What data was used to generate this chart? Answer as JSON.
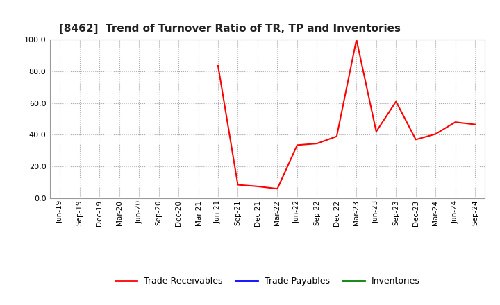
{
  "title": "[8462]  Trend of Turnover Ratio of TR, TP and Inventories",
  "ylim": [
    0.0,
    100.0
  ],
  "yticks": [
    0.0,
    20.0,
    40.0,
    60.0,
    80.0,
    100.0
  ],
  "background_color": "#ffffff",
  "plot_bg_color": "#ffffff",
  "grid_color": "#aaaaaa",
  "trade_receivables_color": "#ff0000",
  "trade_payables_color": "#0000ff",
  "inventories_color": "#008000",
  "x_labels": [
    "Jun-19",
    "Sep-19",
    "Dec-19",
    "Mar-20",
    "Jun-20",
    "Sep-20",
    "Dec-20",
    "Mar-21",
    "Jun-21",
    "Sep-21",
    "Dec-21",
    "Mar-22",
    "Jun-22",
    "Sep-22",
    "Dec-22",
    "Mar-23",
    "Jun-23",
    "Sep-23",
    "Dec-23",
    "Mar-24",
    "Jun-24",
    "Sep-24"
  ],
  "trade_receivables": [
    null,
    null,
    null,
    null,
    null,
    null,
    null,
    null,
    83.5,
    8.5,
    7.5,
    6.0,
    33.5,
    34.5,
    39.0,
    100.0,
    42.0,
    61.0,
    37.0,
    40.5,
    48.0,
    46.5
  ],
  "trade_payables": [
    null,
    null,
    null,
    null,
    null,
    null,
    null,
    null,
    null,
    null,
    null,
    null,
    null,
    null,
    null,
    null,
    null,
    null,
    null,
    null,
    null,
    null
  ],
  "inventories": [
    null,
    null,
    null,
    null,
    null,
    null,
    null,
    null,
    null,
    null,
    null,
    null,
    null,
    null,
    null,
    null,
    null,
    null,
    null,
    null,
    null,
    null
  ],
  "legend_labels": [
    "Trade Receivables",
    "Trade Payables",
    "Inventories"
  ]
}
